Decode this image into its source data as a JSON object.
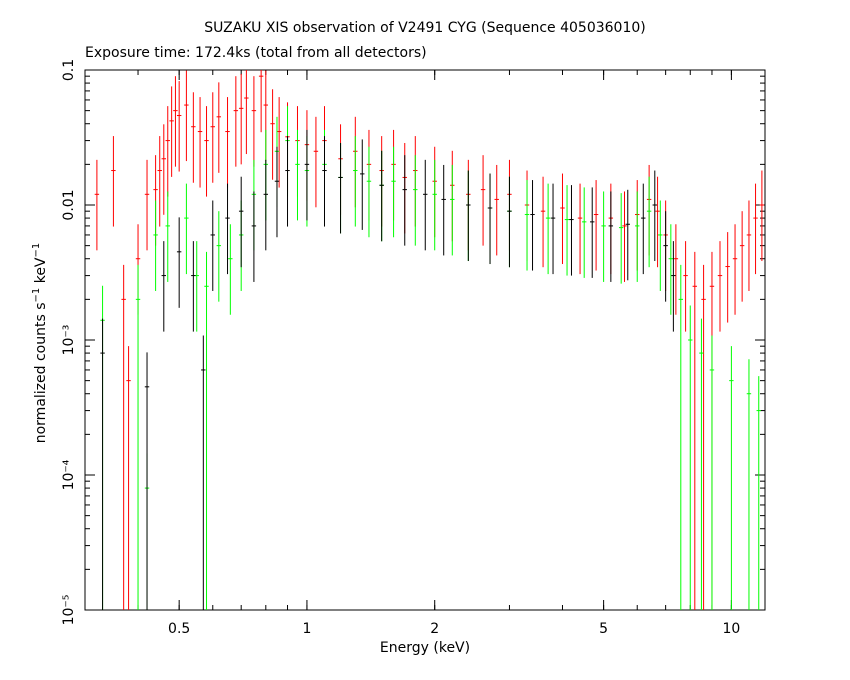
{
  "chart_data": {
    "type": "scatter",
    "title": "SUZAKU XIS observation of V2491 CYG (Sequence 405036010)",
    "subtitle": "Exposure time: 172.4ks (total from all detectors)",
    "xlabel": "Energy (keV)",
    "ylabel": "normalized counts s⁻¹ keV⁻¹",
    "xscale": "log",
    "yscale": "log",
    "xlim": [
      0.3,
      12
    ],
    "ylim": [
      1e-05,
      0.1
    ],
    "grid": false,
    "legend": "none",
    "x_ticks": [
      {
        "value": 0.5,
        "label": "0.5"
      },
      {
        "value": 1,
        "label": "1"
      },
      {
        "value": 2,
        "label": "2"
      },
      {
        "value": 5,
        "label": "5"
      },
      {
        "value": 10,
        "label": "10"
      }
    ],
    "y_ticks": [
      {
        "value": 0.1,
        "label": "0.1"
      },
      {
        "value": 0.01,
        "label": "0.01"
      },
      {
        "value": 0.001,
        "label": "10⁻³"
      },
      {
        "value": 0.0001,
        "label": "10⁻⁴"
      },
      {
        "value": 1e-05,
        "label": "10⁻⁵"
      }
    ],
    "series": [
      {
        "color": "#ff0000",
        "points": [
          [
            0.32,
            0.012
          ],
          [
            0.35,
            0.018
          ],
          [
            0.37,
            0.002
          ],
          [
            0.38,
            0.0005
          ],
          [
            0.4,
            0.004
          ],
          [
            0.42,
            0.012
          ],
          [
            0.44,
            0.013
          ],
          [
            0.45,
            0.018
          ],
          [
            0.46,
            0.022
          ],
          [
            0.47,
            0.03
          ],
          [
            0.48,
            0.042
          ],
          [
            0.49,
            0.05
          ],
          [
            0.5,
            0.046
          ],
          [
            0.52,
            0.055
          ],
          [
            0.54,
            0.038
          ],
          [
            0.56,
            0.035
          ],
          [
            0.58,
            0.03
          ],
          [
            0.6,
            0.038
          ],
          [
            0.62,
            0.045
          ],
          [
            0.65,
            0.035
          ],
          [
            0.68,
            0.05
          ],
          [
            0.7,
            0.052
          ],
          [
            0.72,
            0.062
          ],
          [
            0.75,
            0.05
          ],
          [
            0.78,
            0.09
          ],
          [
            0.8,
            0.055
          ],
          [
            0.83,
            0.04
          ],
          [
            0.86,
            0.035
          ],
          [
            0.9,
            0.032
          ],
          [
            0.95,
            0.03
          ],
          [
            1.0,
            0.028
          ],
          [
            1.05,
            0.025
          ],
          [
            1.1,
            0.03
          ],
          [
            1.2,
            0.022
          ],
          [
            1.3,
            0.025
          ],
          [
            1.4,
            0.02
          ],
          [
            1.5,
            0.018
          ],
          [
            1.6,
            0.02
          ],
          [
            1.7,
            0.016
          ],
          [
            1.8,
            0.018
          ],
          [
            2.0,
            0.015
          ],
          [
            2.2,
            0.014
          ],
          [
            2.4,
            0.012
          ],
          [
            2.6,
            0.013
          ],
          [
            2.8,
            0.011
          ],
          [
            3.0,
            0.012
          ],
          [
            3.3,
            0.01
          ],
          [
            3.6,
            0.009
          ],
          [
            4.0,
            0.0095
          ],
          [
            4.4,
            0.008
          ],
          [
            4.8,
            0.0085
          ],
          [
            5.2,
            0.008
          ],
          [
            5.6,
            0.007
          ],
          [
            6.0,
            0.0085
          ],
          [
            6.4,
            0.011
          ],
          [
            6.7,
            0.009
          ],
          [
            7.0,
            0.006
          ],
          [
            7.4,
            0.004
          ],
          [
            7.8,
            0.003
          ],
          [
            8.2,
            0.0025
          ],
          [
            8.6,
            0.002
          ],
          [
            9.0,
            0.0025
          ],
          [
            9.4,
            0.003
          ],
          [
            9.8,
            0.0035
          ],
          [
            10.2,
            0.004
          ],
          [
            10.6,
            0.005
          ],
          [
            11.0,
            0.006
          ],
          [
            11.4,
            0.008
          ],
          [
            11.8,
            0.01
          ]
        ]
      },
      {
        "color": "#00ff00",
        "points": [
          [
            0.33,
            0.0014
          ],
          [
            0.4,
            0.002
          ],
          [
            0.42,
            8e-05
          ],
          [
            0.44,
            0.006
          ],
          [
            0.47,
            0.007
          ],
          [
            0.52,
            0.008
          ],
          [
            0.55,
            0.003
          ],
          [
            0.58,
            0.0025
          ],
          [
            0.62,
            0.005
          ],
          [
            0.66,
            0.004
          ],
          [
            0.7,
            0.006
          ],
          [
            0.75,
            0.012
          ],
          [
            0.8,
            0.02
          ],
          [
            0.85,
            0.025
          ],
          [
            0.9,
            0.03
          ],
          [
            0.95,
            0.02
          ],
          [
            1.0,
            0.018
          ],
          [
            1.1,
            0.02
          ],
          [
            1.2,
            0.016
          ],
          [
            1.3,
            0.018
          ],
          [
            1.4,
            0.015
          ],
          [
            1.5,
            0.014
          ],
          [
            1.6,
            0.015
          ],
          [
            1.8,
            0.013
          ],
          [
            2.0,
            0.012
          ],
          [
            2.2,
            0.011
          ],
          [
            2.4,
            0.01
          ],
          [
            2.7,
            0.0095
          ],
          [
            3.0,
            0.009
          ],
          [
            3.3,
            0.0085
          ],
          [
            3.7,
            0.008
          ],
          [
            4.1,
            0.0078
          ],
          [
            4.5,
            0.0075
          ],
          [
            5.0,
            0.007
          ],
          [
            5.5,
            0.0068
          ],
          [
            6.0,
            0.007
          ],
          [
            6.4,
            0.009
          ],
          [
            6.8,
            0.006
          ],
          [
            7.2,
            0.004
          ],
          [
            7.6,
            0.002
          ],
          [
            8.0,
            0.001
          ],
          [
            8.5,
            0.0008
          ],
          [
            9.0,
            0.0006
          ],
          [
            10.0,
            0.0005
          ],
          [
            11.0,
            0.0004
          ],
          [
            11.6,
            0.0003
          ]
        ]
      },
      {
        "color": "#000000",
        "points": [
          [
            0.33,
            0.0008
          ],
          [
            0.42,
            0.00045
          ],
          [
            0.46,
            0.003
          ],
          [
            0.5,
            0.0045
          ],
          [
            0.54,
            0.003
          ],
          [
            0.57,
            0.0006
          ],
          [
            0.6,
            0.006
          ],
          [
            0.65,
            0.008
          ],
          [
            0.7,
            0.009
          ],
          [
            0.75,
            0.007
          ],
          [
            0.8,
            0.012
          ],
          [
            0.85,
            0.015
          ],
          [
            0.9,
            0.018
          ],
          [
            1.0,
            0.02
          ],
          [
            1.1,
            0.018
          ],
          [
            1.2,
            0.016
          ],
          [
            1.35,
            0.017
          ],
          [
            1.5,
            0.014
          ],
          [
            1.7,
            0.013
          ],
          [
            1.9,
            0.012
          ],
          [
            2.1,
            0.011
          ],
          [
            2.4,
            0.01
          ],
          [
            2.7,
            0.0095
          ],
          [
            3.0,
            0.009
          ],
          [
            3.4,
            0.0085
          ],
          [
            3.8,
            0.008
          ],
          [
            4.2,
            0.0078
          ],
          [
            4.7,
            0.0075
          ],
          [
            5.2,
            0.007
          ],
          [
            5.7,
            0.0072
          ],
          [
            6.2,
            0.008
          ],
          [
            6.6,
            0.01
          ],
          [
            7.0,
            0.005
          ],
          [
            7.3,
            0.003
          ]
        ]
      }
    ]
  }
}
